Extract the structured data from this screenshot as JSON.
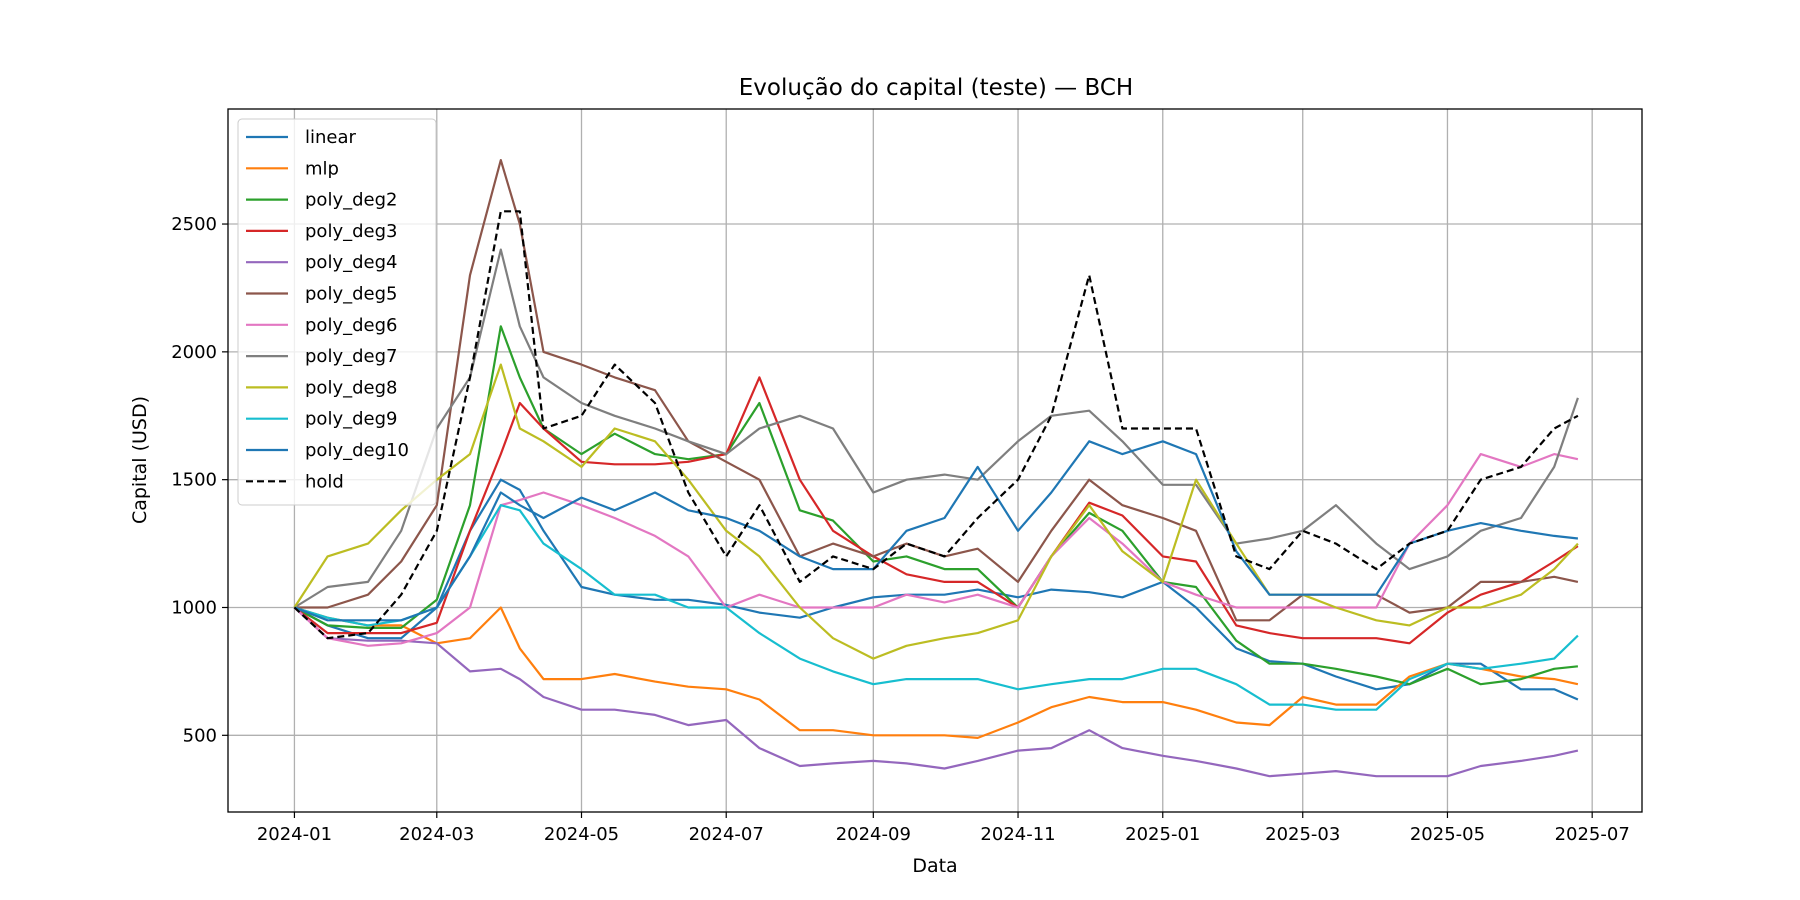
{
  "chart_data": {
    "type": "line",
    "title": "Evolução do capital (teste) — BCH",
    "xlabel": "Data",
    "ylabel": "Capital (USD)",
    "xlim": [
      "2023-12-04",
      "2025-07-22"
    ],
    "ylim": [
      200,
      2950
    ],
    "x_ticks": [
      "2024-01",
      "2024-03",
      "2024-05",
      "2024-07",
      "2024-09",
      "2024-11",
      "2025-01",
      "2025-03",
      "2025-05",
      "2025-07"
    ],
    "y_ticks": [
      500,
      1000,
      1500,
      2000,
      2500
    ],
    "grid": true,
    "legend_position": "top-left",
    "x": [
      "2024-01-01",
      "2024-01-15",
      "2024-02-01",
      "2024-02-15",
      "2024-03-01",
      "2024-03-15",
      "2024-03-28",
      "2024-04-05",
      "2024-04-15",
      "2024-05-01",
      "2024-05-15",
      "2024-06-01",
      "2024-06-15",
      "2024-07-01",
      "2024-07-15",
      "2024-08-01",
      "2024-08-15",
      "2024-09-01",
      "2024-09-15",
      "2024-10-01",
      "2024-10-15",
      "2024-11-01",
      "2024-11-15",
      "2024-12-01",
      "2024-12-15",
      "2025-01-01",
      "2025-01-15",
      "2025-02-01",
      "2025-02-15",
      "2025-03-01",
      "2025-03-15",
      "2025-04-01",
      "2025-04-15",
      "2025-05-01",
      "2025-05-15",
      "2025-06-01",
      "2025-06-15",
      "2025-06-25"
    ],
    "series": [
      {
        "name": "linear",
        "color": "#1f77b4",
        "dash": false,
        "values": [
          1000,
          930,
          880,
          880,
          1000,
          1300,
          1500,
          1460,
          1300,
          1080,
          1050,
          1030,
          1030,
          1010,
          980,
          960,
          1000,
          1040,
          1050,
          1050,
          1070,
          1040,
          1070,
          1060,
          1040,
          1100,
          1000,
          840,
          790,
          780,
          730,
          680,
          700,
          780,
          780,
          680,
          680,
          640
        ]
      },
      {
        "name": "mlp",
        "color": "#ff7f0e",
        "dash": false,
        "values": [
          1000,
          960,
          930,
          930,
          860,
          880,
          1000,
          840,
          720,
          720,
          740,
          710,
          690,
          680,
          640,
          520,
          520,
          500,
          500,
          500,
          490,
          550,
          610,
          650,
          630,
          630,
          600,
          550,
          540,
          650,
          620,
          620,
          730,
          780,
          760,
          730,
          720,
          700
        ]
      },
      {
        "name": "poly_deg2",
        "color": "#2ca02c",
        "dash": false,
        "values": [
          1000,
          930,
          920,
          920,
          1030,
          1400,
          2100,
          1900,
          1700,
          1600,
          1680,
          1600,
          1580,
          1600,
          1800,
          1380,
          1340,
          1180,
          1200,
          1150,
          1150,
          1000,
          1200,
          1370,
          1300,
          1100,
          1080,
          870,
          780,
          780,
          760,
          730,
          700,
          760,
          700,
          720,
          760,
          770
        ]
      },
      {
        "name": "poly_deg3",
        "color": "#d62728",
        "dash": false,
        "values": [
          1000,
          900,
          900,
          900,
          940,
          1300,
          1600,
          1800,
          1700,
          1570,
          1560,
          1560,
          1570,
          1600,
          1900,
          1500,
          1300,
          1200,
          1130,
          1100,
          1100,
          1000,
          1200,
          1410,
          1360,
          1200,
          1180,
          930,
          900,
          880,
          880,
          880,
          860,
          980,
          1050,
          1100,
          1180,
          1240
        ]
      },
      {
        "name": "poly_deg4",
        "color": "#9467bd",
        "dash": false,
        "values": [
          1000,
          880,
          870,
          870,
          860,
          750,
          760,
          720,
          650,
          600,
          600,
          580,
          540,
          560,
          450,
          380,
          390,
          400,
          390,
          370,
          400,
          440,
          450,
          520,
          450,
          420,
          400,
          370,
          340,
          350,
          360,
          340,
          340,
          340,
          380,
          400,
          420,
          440
        ]
      },
      {
        "name": "poly_deg5",
        "color": "#8c564b",
        "dash": false,
        "values": [
          1000,
          1000,
          1050,
          1180,
          1400,
          2300,
          2750,
          2500,
          2000,
          1950,
          1900,
          1850,
          1650,
          1570,
          1500,
          1200,
          1250,
          1200,
          1250,
          1200,
          1230,
          1100,
          1300,
          1500,
          1400,
          1350,
          1300,
          950,
          950,
          1050,
          1050,
          1050,
          980,
          1000,
          1100,
          1100,
          1120,
          1100
        ]
      },
      {
        "name": "poly_deg6",
        "color": "#e377c2",
        "dash": false,
        "values": [
          1000,
          880,
          850,
          860,
          900,
          1000,
          1400,
          1420,
          1450,
          1400,
          1350,
          1280,
          1200,
          1000,
          1050,
          1000,
          1000,
          1000,
          1050,
          1020,
          1050,
          1000,
          1200,
          1350,
          1250,
          1100,
          1050,
          1000,
          1000,
          1000,
          1000,
          1000,
          1250,
          1400,
          1600,
          1550,
          1600,
          1580
        ]
      },
      {
        "name": "poly_deg7",
        "color": "#7f7f7f",
        "dash": false,
        "values": [
          1000,
          1080,
          1100,
          1300,
          1700,
          1900,
          2400,
          2100,
          1900,
          1800,
          1750,
          1700,
          1650,
          1600,
          1700,
          1750,
          1700,
          1450,
          1500,
          1520,
          1500,
          1650,
          1750,
          1770,
          1650,
          1480,
          1480,
          1250,
          1270,
          1300,
          1400,
          1250,
          1150,
          1200,
          1300,
          1350,
          1550,
          1820
        ]
      },
      {
        "name": "poly_deg8",
        "color": "#bcbd22",
        "dash": false,
        "values": [
          1000,
          1200,
          1250,
          1380,
          1500,
          1600,
          1950,
          1700,
          1650,
          1550,
          1700,
          1650,
          1500,
          1300,
          1200,
          1000,
          880,
          800,
          850,
          880,
          900,
          950,
          1200,
          1400,
          1220,
          1100,
          1500,
          1250,
          1050,
          1050,
          1000,
          950,
          930,
          1000,
          1000,
          1050,
          1150,
          1250
        ]
      },
      {
        "name": "poly_deg9",
        "color": "#17becf",
        "dash": false,
        "values": [
          1000,
          960,
          930,
          950,
          1000,
          1200,
          1400,
          1380,
          1250,
          1150,
          1050,
          1050,
          1000,
          1000,
          900,
          800,
          750,
          700,
          720,
          720,
          720,
          680,
          700,
          720,
          720,
          760,
          760,
          700,
          620,
          620,
          600,
          600,
          720,
          780,
          760,
          780,
          800,
          890
        ]
      },
      {
        "name": "poly_deg10",
        "color": "#1f77b4",
        "dash": false,
        "values": [
          1000,
          950,
          950,
          950,
          1000,
          1200,
          1450,
          1400,
          1350,
          1430,
          1380,
          1450,
          1380,
          1350,
          1300,
          1200,
          1150,
          1150,
          1300,
          1350,
          1550,
          1300,
          1450,
          1650,
          1600,
          1650,
          1600,
          1220,
          1050,
          1050,
          1050,
          1050,
          1250,
          1300,
          1330,
          1300,
          1280,
          1270
        ]
      },
      {
        "name": "hold",
        "color": "#000000",
        "dash": true,
        "values": [
          1000,
          880,
          900,
          1050,
          1300,
          1900,
          2550,
          2550,
          1700,
          1750,
          1950,
          1800,
          1450,
          1200,
          1400,
          1100,
          1200,
          1150,
          1250,
          1200,
          1350,
          1500,
          1750,
          2300,
          1700,
          1700,
          1700,
          1200,
          1150,
          1300,
          1250,
          1150,
          1250,
          1300,
          1500,
          1550,
          1700,
          1750
        ]
      }
    ]
  }
}
